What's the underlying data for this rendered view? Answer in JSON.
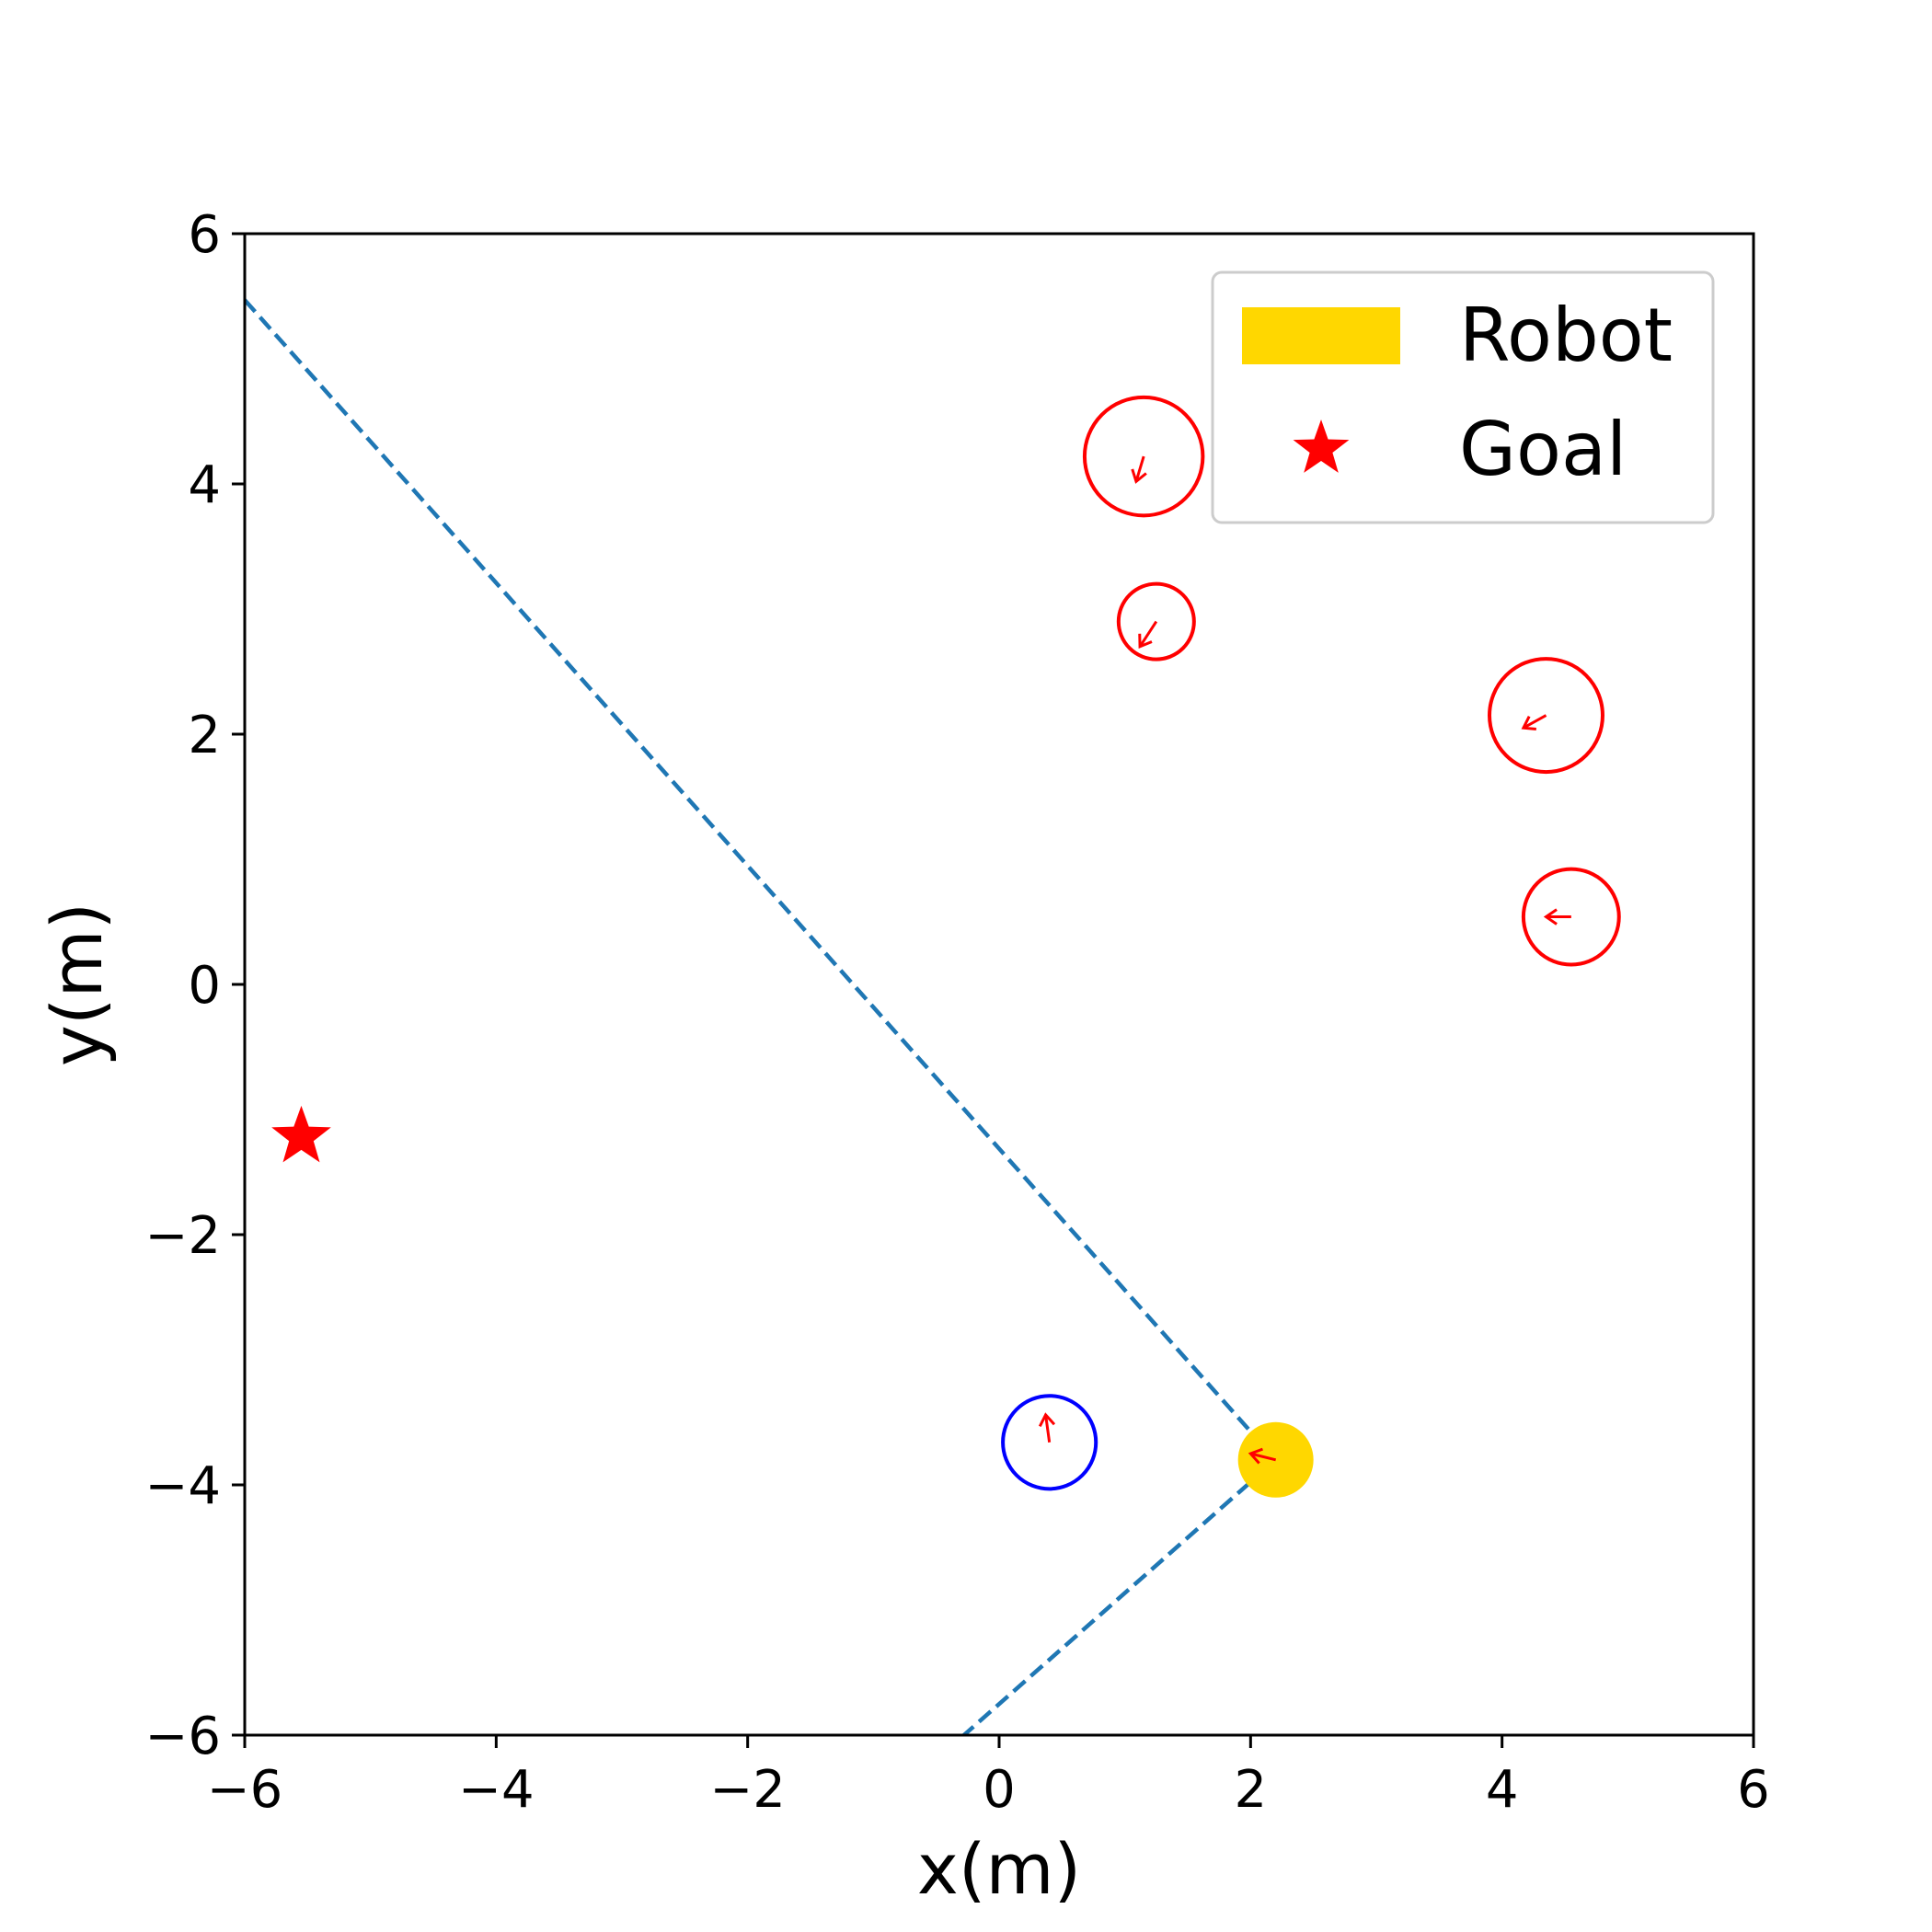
{
  "chart_data": {
    "type": "scatter",
    "title": "",
    "xlabel": "x(m)",
    "ylabel": "y(m)",
    "xlim": [
      -6,
      6
    ],
    "ylim": [
      -6,
      6
    ],
    "xticks": [
      -6,
      -4,
      -2,
      0,
      2,
      4,
      6
    ],
    "yticks": [
      -6,
      -4,
      -2,
      0,
      2,
      4,
      6
    ],
    "xtick_labels": [
      "−6",
      "−4",
      "−2",
      "0",
      "2",
      "4",
      "6"
    ],
    "ytick_labels": [
      "−6",
      "−4",
      "−2",
      "0",
      "2",
      "4",
      "6"
    ],
    "grid": false,
    "legend": {
      "placement": "upper-right",
      "entries": [
        {
          "label": "Robot",
          "marker": "patch",
          "color": "#ffd700"
        },
        {
          "label": "Goal",
          "marker": "star",
          "color": "#ff0000"
        }
      ]
    },
    "path": {
      "style": "dashed",
      "color": "#1f77b4",
      "points": [
        [
          -6.0,
          5.47
        ],
        [
          2.2,
          -3.8
        ],
        [
          -0.28,
          -6.0
        ]
      ]
    },
    "robot": {
      "x": 2.2,
      "y": -3.8,
      "radius": 0.3,
      "color": "#ffd700",
      "heading": [
        -0.2,
        0.05
      ]
    },
    "goal": {
      "x": -5.55,
      "y": -1.22,
      "color": "#ff0000"
    },
    "obstacles": [
      {
        "x": 1.15,
        "y": 4.22,
        "radius": 0.47,
        "color": "#ff0000",
        "velocity": [
          -0.06,
          -0.2
        ]
      },
      {
        "x": 1.25,
        "y": 2.9,
        "radius": 0.3,
        "color": "#ff0000",
        "velocity": [
          -0.13,
          -0.2
        ]
      },
      {
        "x": 4.35,
        "y": 2.15,
        "radius": 0.45,
        "color": "#ff0000",
        "velocity": [
          -0.18,
          -0.1
        ]
      },
      {
        "x": 4.55,
        "y": 0.54,
        "radius": 0.38,
        "color": "#ff0000",
        "velocity": [
          -0.2,
          0.0
        ]
      },
      {
        "x": 0.4,
        "y": -3.66,
        "radius": 0.37,
        "color": "#0000ff",
        "velocity": [
          -0.03,
          0.22
        ]
      }
    ]
  }
}
